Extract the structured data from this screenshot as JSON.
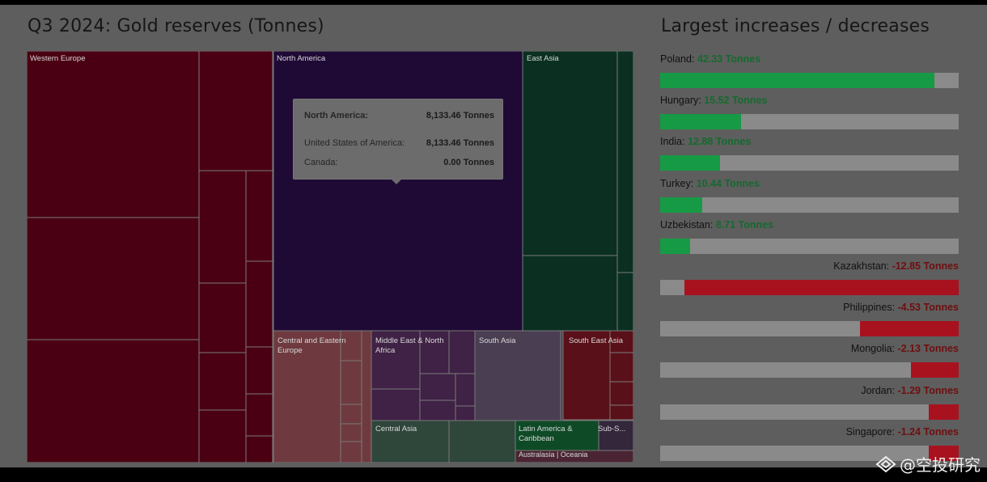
{
  "treemap_title": "Q3 2024: Gold reserves (Tonnes)",
  "bars_title": "Largest increases / decreases",
  "tooltip": {
    "header_label": "North America:",
    "header_value": "8,133.46 Tonnes",
    "rows": [
      {
        "label": "United States of America:",
        "value": "8,133.46 Tonnes"
      },
      {
        "label": "Canada:",
        "value": "0.00 Tonnes"
      }
    ]
  },
  "treemap_labels": {
    "western_europe": "Western Europe",
    "north_america": "North America",
    "east_asia": "East Asia",
    "central_eastern_europe": "Central and Eastern Europe",
    "middle_east": "Middle East & North Africa",
    "south_asia": "South Asia",
    "south_east_asia": "South East Asia",
    "central_asia": "Central Asia",
    "latin_america": "Latin America & Caribbean",
    "sub_saharan": "Sub-S...",
    "australasia": "Australasia | Oceania"
  },
  "colors": {
    "increase": "#179a45",
    "decrease": "#a8121f",
    "western_europe": "#4a0012",
    "north_america": "#1f0a36",
    "east_asia": "#0b3022"
  },
  "chart_data": [
    {
      "type": "treemap",
      "title": "Q3 2024: Gold reserves (Tonnes)",
      "regions": [
        "Western Europe",
        "North America",
        "East Asia",
        "Central and Eastern Europe",
        "Middle East & North Africa",
        "South Asia",
        "South East Asia",
        "Central Asia",
        "Latin America & Caribbean",
        "Sub-S...",
        "Australasia | Oceania"
      ],
      "tooltip_region": "North America",
      "tooltip_values": [
        {
          "name": "North America",
          "value": 8133.46
        },
        {
          "name": "United States of America",
          "value": 8133.46
        },
        {
          "name": "Canada",
          "value": 0.0
        }
      ],
      "unit": "Tonnes"
    },
    {
      "type": "bar",
      "title": "Largest increases / decreases",
      "orientation": "horizontal",
      "unit": "Tonnes",
      "categories": [
        "Poland",
        "Hungary",
        "India",
        "Turkey",
        "Uzbekistan",
        "Kazakhstan",
        "Philippines",
        "Mongolia",
        "Jordan",
        "Singapore"
      ],
      "values": [
        42.33,
        15.52,
        12.88,
        10.44,
        8.71,
        -12.85,
        -4.53,
        -2.13,
        -1.29,
        -1.24
      ],
      "labels": [
        "42.33 Tonnes",
        "15.52 Tonnes",
        "12.88 Tonnes",
        "10.44 Tonnes",
        "8.71 Tonnes",
        "-12.85 Tonnes",
        "-4.53 Tonnes",
        "-2.13 Tonnes",
        "-1.29 Tonnes",
        "-1.24 Tonnes"
      ],
      "fill_fraction": [
        0.92,
        0.27,
        0.2,
        0.14,
        0.1,
        0.92,
        0.33,
        0.16,
        0.1,
        0.1
      ]
    }
  ],
  "watermark": "@空投研究"
}
